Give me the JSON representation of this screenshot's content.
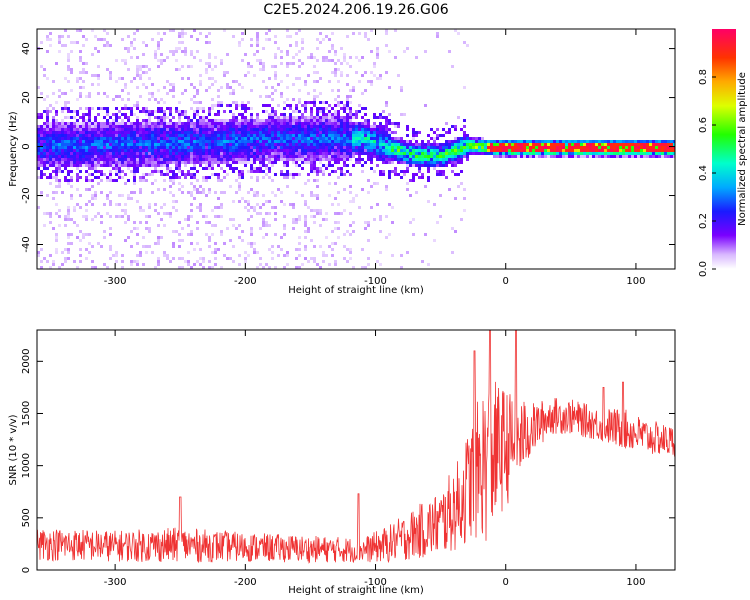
{
  "title": "C2E5.2024.206.19.26.G06",
  "chart_data": [
    {
      "type": "heatmap",
      "xlabel": "Height of straight line (km)",
      "ylabel": "Frequency (Hz)",
      "xlim": [
        -360,
        130
      ],
      "ylim": [
        -50,
        48
      ],
      "xticks": [
        -300,
        -200,
        -100,
        0,
        100
      ],
      "yticks": [
        -40,
        -20,
        0,
        20,
        40
      ],
      "colorbar": {
        "label": "Normalized spectral amplitude",
        "ticks": [
          "0.0",
          "0.2",
          "0.4",
          "0.6",
          "0.8"
        ],
        "range": [
          0,
          1
        ]
      },
      "ridge_frequency": [
        {
          "x": -360,
          "y": 1
        },
        {
          "x": -250,
          "y": 2
        },
        {
          "x": -150,
          "y": 4
        },
        {
          "x": -110,
          "y": 4
        },
        {
          "x": -90,
          "y": 0
        },
        {
          "x": -70,
          "y": -3
        },
        {
          "x": -50,
          "y": -3
        },
        {
          "x": -30,
          "y": 1
        },
        {
          "x": -10,
          "y": 0
        },
        {
          "x": 0,
          "y": 0
        },
        {
          "x": 50,
          "y": 0
        },
        {
          "x": 130,
          "y": 0
        }
      ],
      "grid": false
    },
    {
      "type": "line",
      "xlabel": "Height of straight line (km)",
      "ylabel": "SNR (10 * v/v)",
      "xlim": [
        -360,
        130
      ],
      "ylim": [
        0,
        2300
      ],
      "xticks": [
        -300,
        -200,
        -100,
        0,
        100
      ],
      "yticks": [
        0,
        500,
        1000,
        1500,
        2000
      ],
      "series": [
        {
          "color": "#ef3333",
          "envelope": [
            {
              "x": -360,
              "mid": 250,
              "spread": 160
            },
            {
              "x": -300,
              "mid": 230,
              "spread": 150
            },
            {
              "x": -250,
              "mid": 240,
              "spread": 170
            },
            {
              "x": -200,
              "mid": 220,
              "spread": 140
            },
            {
              "x": -150,
              "mid": 200,
              "spread": 130
            },
            {
              "x": -110,
              "mid": 190,
              "spread": 120
            },
            {
              "x": -90,
              "mid": 250,
              "spread": 180
            },
            {
              "x": -70,
              "mid": 350,
              "spread": 250
            },
            {
              "x": -50,
              "mid": 450,
              "spread": 320
            },
            {
              "x": -35,
              "mid": 650,
              "spread": 450
            },
            {
              "x": -25,
              "mid": 900,
              "spread": 600
            },
            {
              "x": -15,
              "mid": 1050,
              "spread": 800
            },
            {
              "x": -5,
              "mid": 1150,
              "spread": 650
            },
            {
              "x": 5,
              "mid": 1200,
              "spread": 500
            },
            {
              "x": 20,
              "mid": 1350,
              "spread": 250
            },
            {
              "x": 35,
              "mid": 1480,
              "spread": 180
            },
            {
              "x": 50,
              "mid": 1470,
              "spread": 170
            },
            {
              "x": 70,
              "mid": 1400,
              "spread": 160
            },
            {
              "x": 90,
              "mid": 1350,
              "spread": 200
            },
            {
              "x": 110,
              "mid": 1270,
              "spread": 170
            },
            {
              "x": 130,
              "mid": 1230,
              "spread": 150
            }
          ],
          "spikes": [
            {
              "x": -250,
              "y": 700
            },
            {
              "x": -113,
              "y": 730
            },
            {
              "x": -24,
              "y": 2100
            },
            {
              "x": -12,
              "y": 2300
            },
            {
              "x": 8,
              "y": 2300
            },
            {
              "x": 75,
              "y": 1750
            },
            {
              "x": 90,
              "y": 1800
            }
          ]
        }
      ],
      "grid": false
    }
  ]
}
